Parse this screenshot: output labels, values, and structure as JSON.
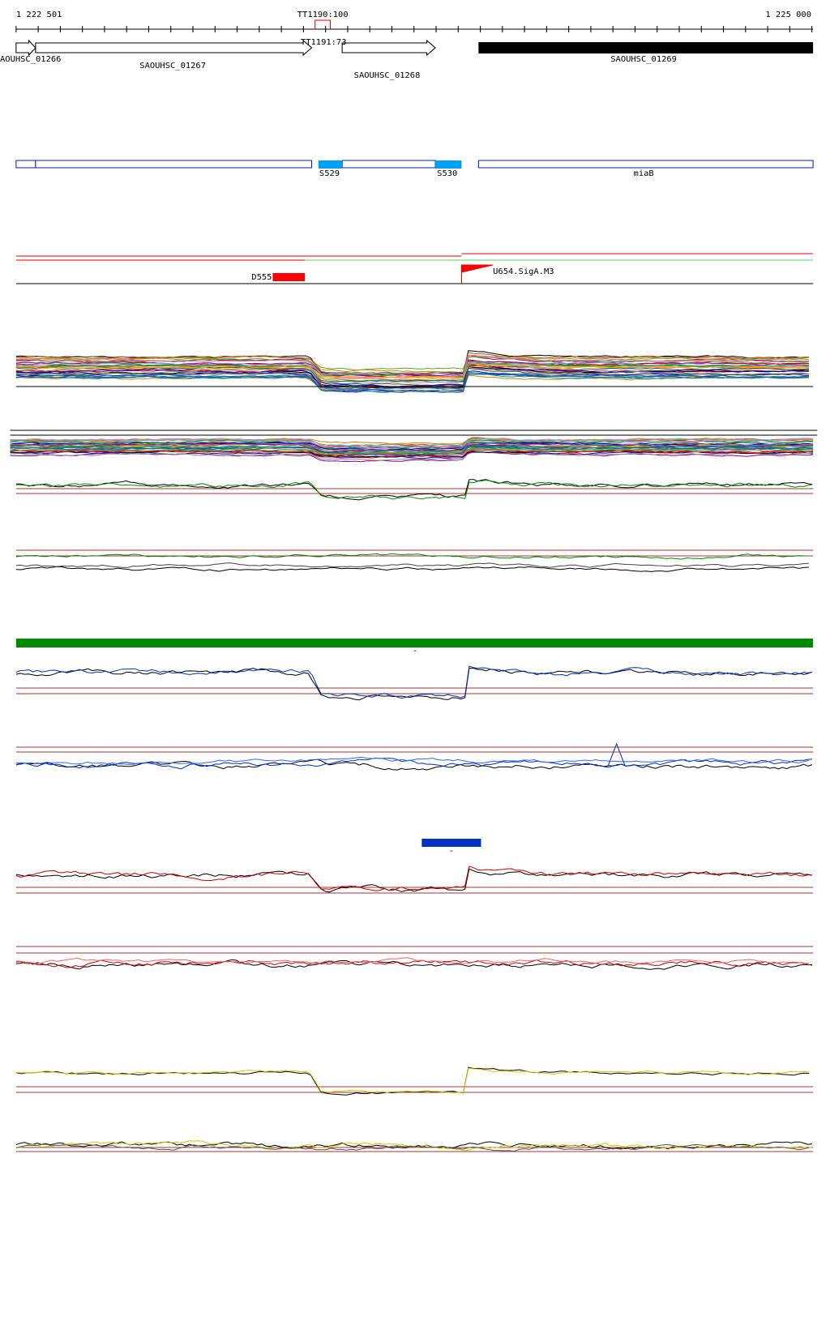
{
  "ruler": {
    "start": "1 222 501",
    "end": "1 225 000"
  },
  "terminators": [
    "TT1190:100",
    "TT1191:73"
  ],
  "genes": [
    "AOUHSC_01266",
    "SAOUHSC_01267",
    "SAOUHSC_01268",
    "SAOUHSC_01269"
  ],
  "regions": [
    "S529",
    "S530",
    "miaB"
  ],
  "promoters": [
    "D555",
    "U654.SigA.M3"
  ],
  "strand_marks": [
    "-",
    "-"
  ]
}
